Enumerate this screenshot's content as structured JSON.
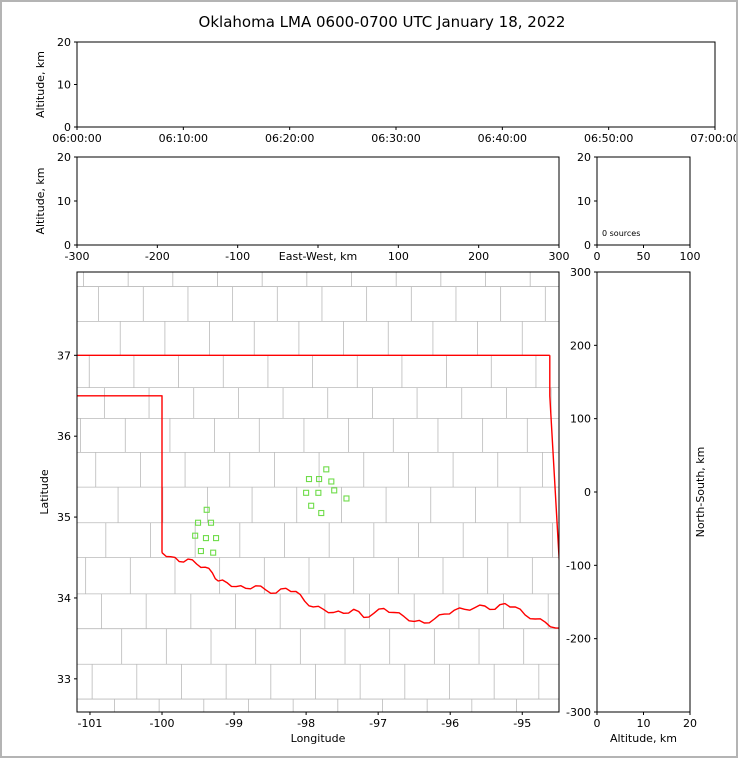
{
  "title": "Oklahoma LMA 0600-0700 UTC January 18, 2022",
  "colors": {
    "state_border": "#ff0000",
    "county_lines": "#bababa",
    "marker_green": "#6fdc4a",
    "frame_border": "#b4b4b4",
    "axis": "#000000"
  },
  "chart_data": [
    {
      "id": "time",
      "name": "altitude-vs-time-panel",
      "type": "scatter",
      "xlabel": "",
      "ylabel": "Altitude, km",
      "xlim": [
        0,
        60
      ],
      "ylim": [
        0,
        20
      ],
      "xticks": [
        0,
        10,
        20,
        30,
        40,
        50,
        60
      ],
      "xtick_labels": [
        "06:00:00",
        "06:10:00",
        "06:20:00",
        "06:30:00",
        "06:40:00",
        "06:50:00",
        "07:00:00"
      ],
      "yticks": [
        0,
        10,
        20
      ],
      "points": []
    },
    {
      "id": "ew",
      "name": "altitude-vs-east-west-panel",
      "type": "scatter",
      "xlabel": "East-West, km",
      "xlabel_inline": true,
      "ylabel": "Altitude, km",
      "xlim": [
        -300,
        300
      ],
      "ylim": [
        0,
        20
      ],
      "xticks": [
        -300,
        -200,
        -100,
        0,
        100,
        200,
        300
      ],
      "xtick_labels": [
        "-300",
        "-200",
        "-100",
        "",
        "100",
        "200",
        "300"
      ],
      "yticks": [
        0,
        10,
        20
      ],
      "points": []
    },
    {
      "id": "hist",
      "name": "source-count-histogram-panel",
      "type": "bar",
      "annotation": "0 sources",
      "xlim": [
        0,
        100
      ],
      "ylim": [
        0,
        20
      ],
      "xticks": [
        0,
        50,
        100
      ],
      "yticks": [
        0,
        10,
        20
      ],
      "values": []
    },
    {
      "id": "map",
      "name": "plan-view-map-panel",
      "type": "scatter",
      "xlabel": "Longitude",
      "ylabel": "Latitude",
      "xlim": [
        -101.18,
        -94.49
      ],
      "ylim": [
        32.59,
        38.03
      ],
      "xticks": [
        -101,
        -100,
        -99,
        -98,
        -97,
        -96,
        -95
      ],
      "yticks": [
        33,
        34,
        35,
        36,
        37
      ],
      "marker": {
        "shape": "open-square",
        "size": 5,
        "color": "#6fdc4a"
      },
      "points": [
        [
          -99.38,
          35.09
        ],
        [
          -99.5,
          34.93
        ],
        [
          -99.32,
          34.93
        ],
        [
          -99.54,
          34.77
        ],
        [
          -99.39,
          34.74
        ],
        [
          -99.25,
          34.74
        ],
        [
          -99.46,
          34.58
        ],
        [
          -99.29,
          34.56
        ],
        [
          -97.72,
          35.59
        ],
        [
          -97.96,
          35.47
        ],
        [
          -97.82,
          35.47
        ],
        [
          -97.65,
          35.44
        ],
        [
          -98.0,
          35.3
        ],
        [
          -97.83,
          35.3
        ],
        [
          -97.61,
          35.33
        ],
        [
          -97.44,
          35.23
        ],
        [
          -97.93,
          35.14
        ],
        [
          -97.79,
          35.05
        ]
      ],
      "state_border": {
        "color": "#ff0000",
        "paths": [
          {
            "points": [
              [
                -101.18,
                37.0
              ],
              [
                -94.617,
                37.0
              ]
            ]
          },
          {
            "points": [
              [
                -94.617,
                37.0
              ],
              [
                -94.617,
                36.5
              ],
              [
                -94.43,
                33.58
              ]
            ]
          },
          {
            "points": [
              [
                -101.18,
                36.5
              ],
              [
                -100.0,
                36.5
              ],
              [
                -100.0,
                34.56
              ]
            ]
          },
          {
            "wiggle": true,
            "points": [
              [
                -100.0,
                34.56
              ],
              [
                -99.88,
                34.51
              ],
              [
                -99.76,
                34.45
              ],
              [
                -99.64,
                34.48
              ],
              [
                -99.52,
                34.42
              ],
              [
                -99.4,
                34.38
              ],
              [
                -99.3,
                34.31
              ],
              [
                -99.22,
                34.21
              ],
              [
                -99.1,
                34.19
              ],
              [
                -98.97,
                34.14
              ],
              [
                -98.84,
                34.12
              ],
              [
                -98.7,
                34.15
              ],
              [
                -98.56,
                34.1
              ],
              [
                -98.42,
                34.06
              ],
              [
                -98.28,
                34.12
              ],
              [
                -98.14,
                34.08
              ],
              [
                -98.02,
                33.96
              ],
              [
                -97.9,
                33.89
              ],
              [
                -97.76,
                33.86
              ],
              [
                -97.62,
                33.82
              ],
              [
                -97.48,
                33.81
              ],
              [
                -97.34,
                33.86
              ],
              [
                -97.2,
                33.76
              ],
              [
                -97.06,
                33.81
              ],
              [
                -96.92,
                33.87
              ],
              [
                -96.78,
                33.82
              ],
              [
                -96.64,
                33.77
              ],
              [
                -96.5,
                33.71
              ],
              [
                -96.36,
                33.69
              ],
              [
                -96.22,
                33.74
              ],
              [
                -96.08,
                33.8
              ],
              [
                -95.94,
                33.85
              ],
              [
                -95.8,
                33.86
              ],
              [
                -95.66,
                33.88
              ],
              [
                -95.52,
                33.9
              ],
              [
                -95.38,
                33.86
              ],
              [
                -95.24,
                33.93
              ],
              [
                -95.1,
                33.89
              ],
              [
                -94.96,
                33.79
              ],
              [
                -94.82,
                33.74
              ],
              [
                -94.68,
                33.7
              ],
              [
                -94.54,
                33.63
              ],
              [
                -94.43,
                33.58
              ]
            ]
          }
        ]
      },
      "counties": {
        "color": "#bababa",
        "row_lats": [
          32.42,
          32.75,
          33.18,
          33.62,
          34.05,
          34.5,
          34.93,
          35.37,
          35.8,
          36.22,
          36.6,
          37.0,
          37.42,
          37.85,
          38.2
        ],
        "skip_horizontal": [
          32.42,
          37.0,
          38.2
        ],
        "col_step": 0.62,
        "col_offsets": [
          0.0,
          0.31,
          0.1,
          0.44,
          0.22,
          0.5,
          0.05,
          0.36,
          0.15,
          0.48,
          0.27,
          0.08,
          0.4,
          0.19
        ]
      }
    },
    {
      "id": "ns",
      "name": "north-south-vs-altitude-panel",
      "type": "scatter",
      "xlabel": "Altitude, km",
      "ylabel": "North-South, km",
      "ylabel_side": "right",
      "xlim": [
        0,
        20
      ],
      "ylim": [
        -300,
        300
      ],
      "xticks": [
        0,
        10,
        20
      ],
      "yticks": [
        -300,
        -200,
        -100,
        0,
        100,
        200,
        300
      ],
      "points": []
    }
  ]
}
